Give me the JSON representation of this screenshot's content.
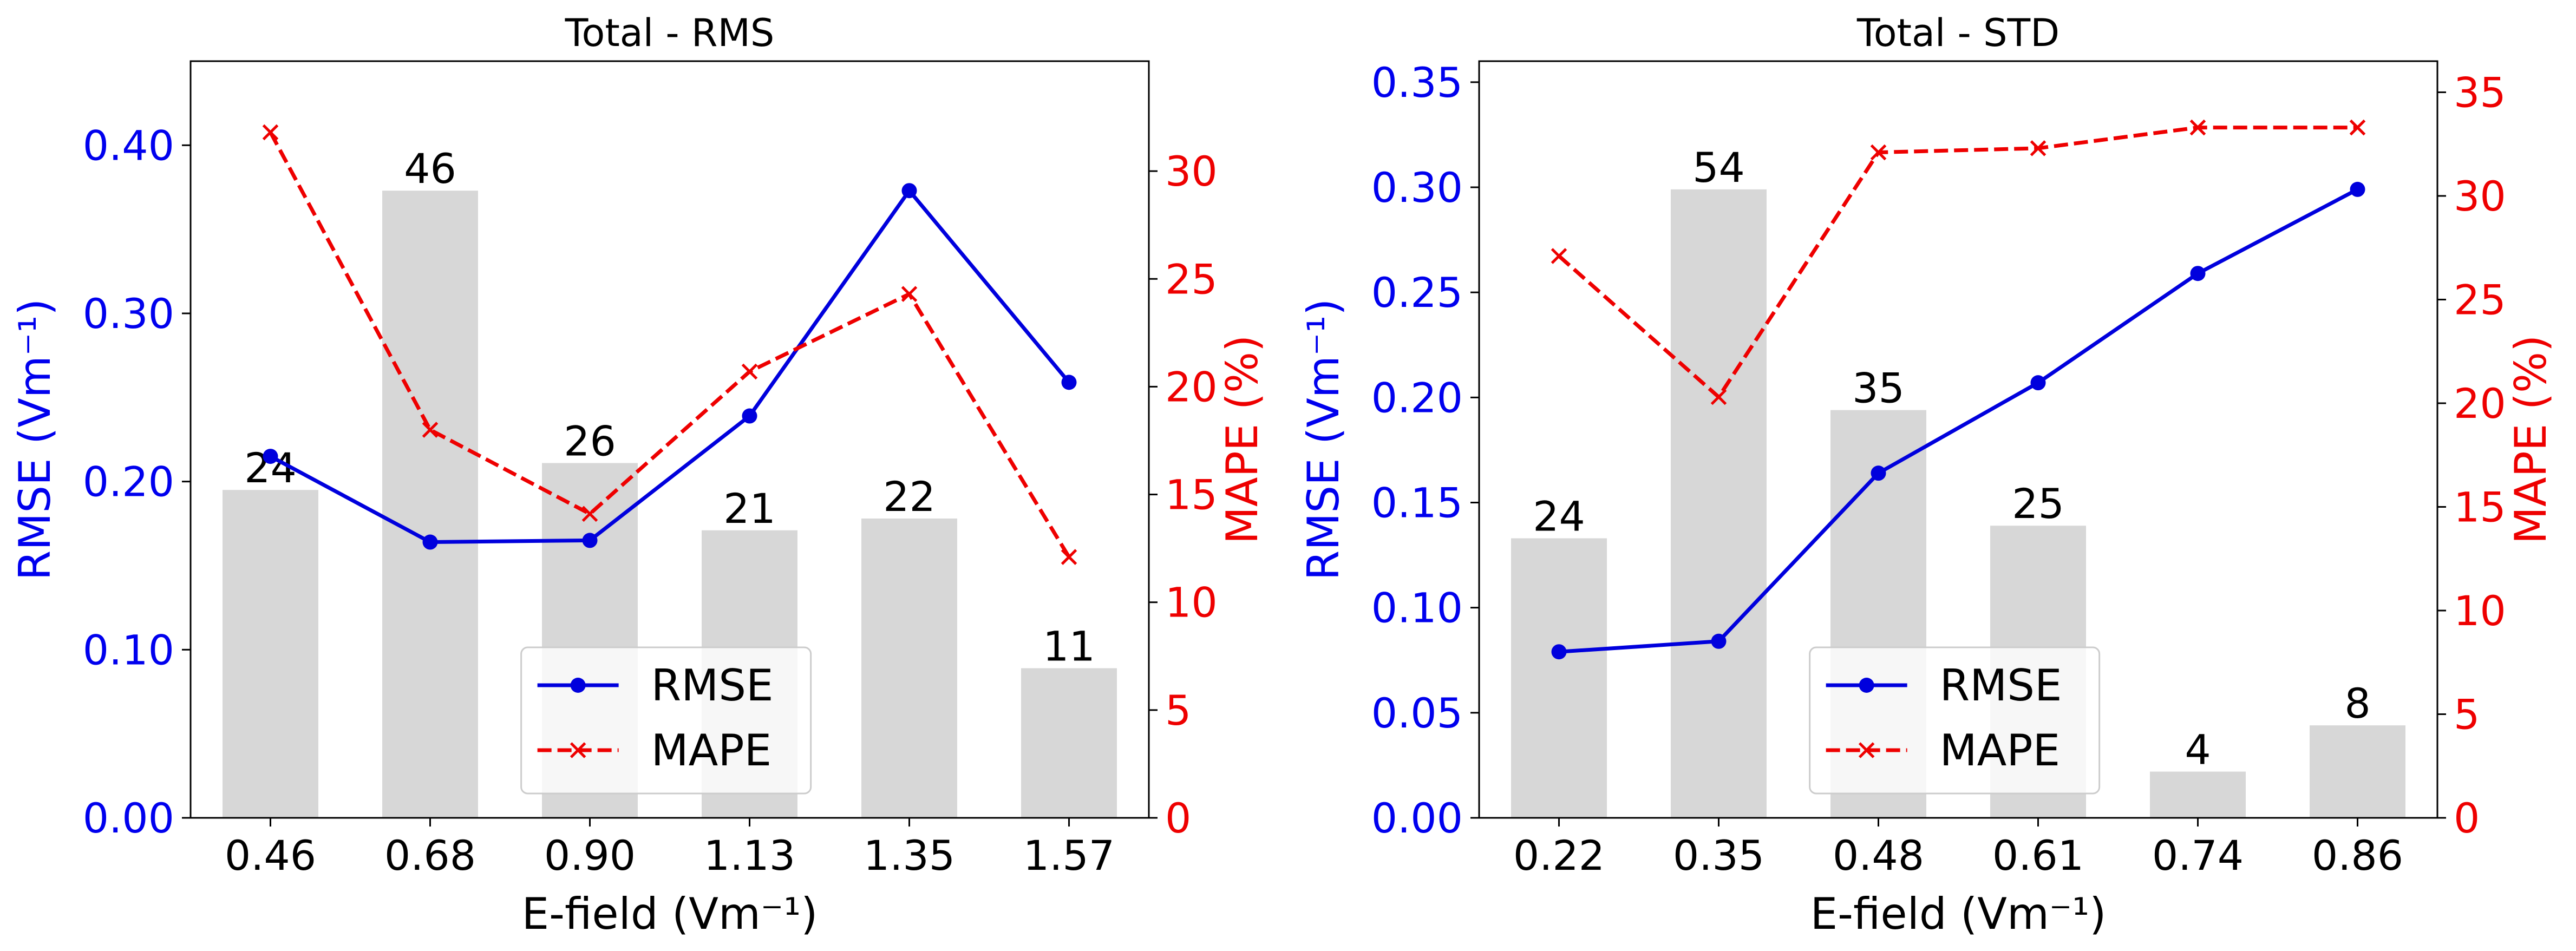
{
  "chart_data": [
    {
      "type": "bar",
      "title": "Total - RMS",
      "xlabel": "E-field (Vm⁻¹)",
      "ylabel_left": "RMSE (Vm⁻¹)",
      "ylabel_right": "MAPE (%)",
      "categories": [
        "0.46",
        "0.68",
        "0.90",
        "1.13",
        "1.35",
        "1.57"
      ],
      "bar_heights": [
        0.195,
        0.373,
        0.211,
        0.171,
        0.178,
        0.089
      ],
      "bar_labels": [
        "24",
        "46",
        "26",
        "21",
        "22",
        "11"
      ],
      "ylim_left": [
        0,
        0.45
      ],
      "yticks_left": [
        "0.00",
        "0.10",
        "0.20",
        "0.30",
        "0.40"
      ],
      "ylim_right": [
        0,
        35.1
      ],
      "yticks_right": [
        "0",
        "5",
        "10",
        "15",
        "20",
        "25",
        "30"
      ],
      "series": [
        {
          "name": "RMSE",
          "axis": "left",
          "color": "#0000dd",
          "style": "solid",
          "marker": "circle",
          "values": [
            0.215,
            0.164,
            0.165,
            0.239,
            0.373,
            0.259
          ]
        },
        {
          "name": "MAPE",
          "axis": "right",
          "color": "#ee0000",
          "style": "dashed",
          "marker": "x",
          "values": [
            31.8,
            18.0,
            14.1,
            20.7,
            24.3,
            12.1
          ]
        }
      ],
      "legend_position": "lower-right",
      "grid": false
    },
    {
      "type": "bar",
      "title": "Total - STD",
      "xlabel": "E-field (Vm⁻¹)",
      "ylabel_left": "RMSE (Vm⁻¹)",
      "ylabel_right": "MAPE (%)",
      "categories": [
        "0.22",
        "0.35",
        "0.48",
        "0.61",
        "0.74",
        "0.86"
      ],
      "bar_heights": [
        0.133,
        0.299,
        0.194,
        0.139,
        0.022,
        0.044
      ],
      "bar_labels": [
        "24",
        "54",
        "35",
        "25",
        "4",
        "8"
      ],
      "ylim_left": [
        0,
        0.36
      ],
      "yticks_left": [
        "0.00",
        "0.05",
        "0.10",
        "0.15",
        "0.20",
        "0.25",
        "0.30",
        "0.35"
      ],
      "ylim_right": [
        0,
        36.5
      ],
      "yticks_right": [
        "0",
        "5",
        "10",
        "15",
        "20",
        "25",
        "30",
        "35"
      ],
      "series": [
        {
          "name": "RMSE",
          "axis": "left",
          "color": "#0000dd",
          "style": "solid",
          "marker": "circle",
          "values": [
            0.079,
            0.084,
            0.164,
            0.207,
            0.259,
            0.299
          ]
        },
        {
          "name": "MAPE",
          "axis": "right",
          "color": "#ee0000",
          "style": "dashed",
          "marker": "x",
          "values": [
            27.1,
            20.3,
            32.1,
            32.3,
            33.3,
            33.3
          ]
        }
      ],
      "legend_position": "lower-right",
      "grid": false
    }
  ],
  "colors": {
    "bar": "#d7d7d7",
    "left_axis": "#0000ee",
    "right_axis": "#ee0000",
    "axis": "#000000"
  }
}
